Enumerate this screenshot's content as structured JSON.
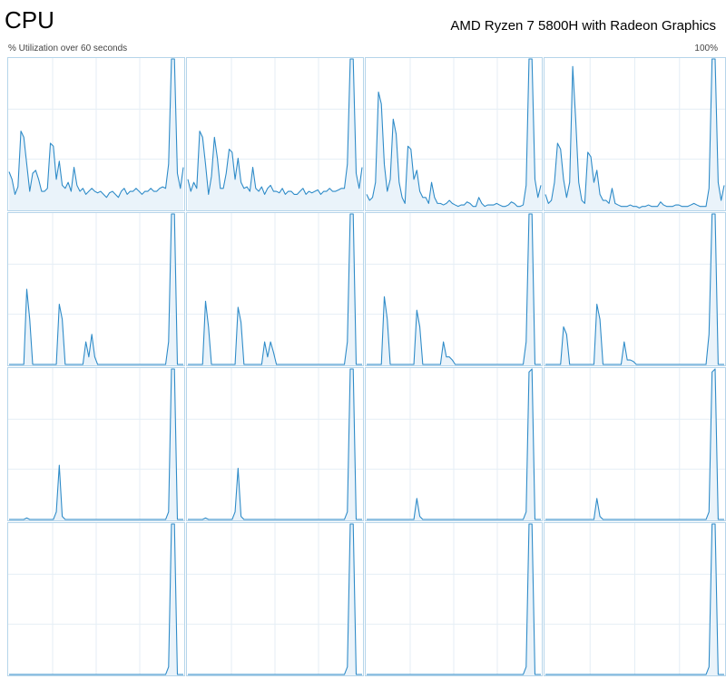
{
  "header": {
    "title": "CPU",
    "processor_name": "AMD Ryzen 7 5800H with Radeon Graphics",
    "utilization_label": "% Utilization over 60 seconds",
    "max_label": "100%"
  },
  "colors": {
    "line": "#2e8bc8",
    "fill": "#eaf3fa",
    "grid": "#e4eef5",
    "border": "#b6d5ea"
  },
  "chart_data": {
    "type": "line",
    "title": "",
    "xlabel": "",
    "ylabel": "% Utilization over 60 seconds",
    "xlim": [
      0,
      60
    ],
    "ylim": [
      0,
      100
    ],
    "grid": true,
    "series": [
      {
        "values": [
          25,
          20,
          10,
          15,
          52,
          48,
          30,
          12,
          24,
          26,
          20,
          12,
          12,
          14,
          44,
          42,
          20,
          32,
          16,
          14,
          18,
          12,
          28,
          16,
          12,
          14,
          10,
          12,
          14,
          12,
          11,
          12,
          10,
          8,
          11,
          12,
          10,
          8,
          12,
          14,
          10,
          12,
          12,
          14,
          12,
          10,
          12,
          12,
          14,
          12,
          12,
          14,
          15,
          14,
          30,
          100,
          100,
          24,
          14,
          28
        ]
      },
      {
        "values": [
          20,
          12,
          18,
          14,
          52,
          48,
          30,
          10,
          22,
          48,
          34,
          14,
          14,
          24,
          40,
          38,
          20,
          34,
          18,
          14,
          15,
          12,
          28,
          14,
          12,
          15,
          10,
          14,
          16,
          12,
          12,
          11,
          14,
          10,
          12,
          12,
          10,
          10,
          12,
          14,
          10,
          12,
          11,
          12,
          13,
          10,
          12,
          12,
          14,
          12,
          12,
          13,
          14,
          14,
          30,
          100,
          100,
          24,
          14,
          28
        ]
      },
      {
        "values": [
          10,
          6,
          8,
          18,
          78,
          70,
          30,
          12,
          20,
          60,
          50,
          18,
          8,
          4,
          42,
          40,
          20,
          26,
          12,
          8,
          8,
          4,
          18,
          8,
          4,
          4,
          3,
          4,
          6,
          4,
          3,
          2,
          3,
          3,
          5,
          4,
          2,
          2,
          8,
          4,
          2,
          3,
          3,
          3,
          4,
          3,
          2,
          2,
          3,
          5,
          4,
          2,
          2,
          3,
          16,
          100,
          100,
          20,
          8,
          16
        ]
      },
      {
        "values": [
          10,
          4,
          6,
          18,
          44,
          40,
          20,
          8,
          18,
          95,
          60,
          18,
          6,
          4,
          38,
          35,
          18,
          26,
          10,
          6,
          6,
          4,
          14,
          4,
          3,
          2,
          2,
          2,
          3,
          2,
          2,
          1,
          2,
          2,
          3,
          2,
          2,
          2,
          5,
          3,
          2,
          2,
          2,
          3,
          3,
          2,
          2,
          2,
          3,
          4,
          3,
          2,
          2,
          2,
          14,
          100,
          100,
          18,
          6,
          16
        ]
      },
      {
        "values": [
          0,
          0,
          0,
          0,
          0,
          0,
          50,
          30,
          0,
          0,
          0,
          0,
          0,
          0,
          0,
          0,
          0,
          40,
          30,
          0,
          0,
          0,
          0,
          0,
          0,
          0,
          15,
          5,
          20,
          5,
          0,
          0,
          0,
          0,
          0,
          0,
          0,
          0,
          0,
          0,
          0,
          0,
          0,
          0,
          0,
          0,
          0,
          0,
          0,
          0,
          0,
          0,
          0,
          0,
          15,
          100,
          100,
          0,
          0,
          0
        ]
      },
      {
        "values": [
          0,
          0,
          0,
          0,
          0,
          0,
          42,
          25,
          0,
          0,
          0,
          0,
          0,
          0,
          0,
          0,
          0,
          38,
          28,
          0,
          0,
          0,
          0,
          0,
          0,
          0,
          15,
          5,
          15,
          8,
          0,
          0,
          0,
          0,
          0,
          0,
          0,
          0,
          0,
          0,
          0,
          0,
          0,
          0,
          0,
          0,
          0,
          0,
          0,
          0,
          0,
          0,
          0,
          0,
          15,
          100,
          100,
          0,
          0,
          0
        ]
      },
      {
        "values": [
          0,
          0,
          0,
          0,
          0,
          0,
          45,
          30,
          0,
          0,
          0,
          0,
          0,
          0,
          0,
          0,
          0,
          36,
          25,
          0,
          0,
          0,
          0,
          0,
          0,
          0,
          15,
          5,
          5,
          3,
          0,
          0,
          0,
          0,
          0,
          0,
          0,
          0,
          0,
          0,
          0,
          0,
          0,
          0,
          0,
          0,
          0,
          0,
          0,
          0,
          0,
          0,
          0,
          0,
          15,
          100,
          100,
          0,
          0,
          0
        ]
      },
      {
        "values": [
          0,
          0,
          0,
          0,
          0,
          0,
          25,
          20,
          0,
          0,
          0,
          0,
          0,
          0,
          0,
          0,
          0,
          40,
          30,
          0,
          0,
          0,
          0,
          0,
          0,
          0,
          15,
          3,
          3,
          2,
          0,
          0,
          0,
          0,
          0,
          0,
          0,
          0,
          0,
          0,
          0,
          0,
          0,
          0,
          0,
          0,
          0,
          0,
          0,
          0,
          0,
          0,
          0,
          0,
          20,
          100,
          100,
          0,
          0,
          0
        ]
      },
      {
        "values": [
          0,
          0,
          0,
          0,
          0,
          0,
          1,
          0,
          0,
          0,
          0,
          0,
          0,
          0,
          0,
          0,
          5,
          36,
          2,
          0,
          0,
          0,
          0,
          0,
          0,
          0,
          0,
          0,
          0,
          0,
          0,
          0,
          0,
          0,
          0,
          0,
          0,
          0,
          0,
          0,
          0,
          0,
          0,
          0,
          0,
          0,
          0,
          0,
          0,
          0,
          0,
          0,
          0,
          0,
          5,
          100,
          100,
          0,
          0,
          0
        ]
      },
      {
        "values": [
          0,
          0,
          0,
          0,
          0,
          0,
          1,
          0,
          0,
          0,
          0,
          0,
          0,
          0,
          0,
          0,
          5,
          34,
          2,
          0,
          0,
          0,
          0,
          0,
          0,
          0,
          0,
          0,
          0,
          0,
          0,
          0,
          0,
          0,
          0,
          0,
          0,
          0,
          0,
          0,
          0,
          0,
          0,
          0,
          0,
          0,
          0,
          0,
          0,
          0,
          0,
          0,
          0,
          0,
          5,
          100,
          100,
          0,
          0,
          0
        ]
      },
      {
        "values": [
          0,
          0,
          0,
          0,
          0,
          0,
          0,
          0,
          0,
          0,
          0,
          0,
          0,
          0,
          0,
          0,
          0,
          14,
          2,
          0,
          0,
          0,
          0,
          0,
          0,
          0,
          0,
          0,
          0,
          0,
          0,
          0,
          0,
          0,
          0,
          0,
          0,
          0,
          0,
          0,
          0,
          0,
          0,
          0,
          0,
          0,
          0,
          0,
          0,
          0,
          0,
          0,
          0,
          0,
          5,
          98,
          100,
          0,
          0,
          0
        ]
      },
      {
        "values": [
          0,
          0,
          0,
          0,
          0,
          0,
          0,
          0,
          0,
          0,
          0,
          0,
          0,
          0,
          0,
          0,
          0,
          14,
          2,
          0,
          0,
          0,
          0,
          0,
          0,
          0,
          0,
          0,
          0,
          0,
          0,
          0,
          0,
          0,
          0,
          0,
          0,
          0,
          0,
          0,
          0,
          0,
          0,
          0,
          0,
          0,
          0,
          0,
          0,
          0,
          0,
          0,
          0,
          0,
          5,
          98,
          100,
          0,
          0,
          0
        ]
      },
      {
        "values": [
          0,
          0,
          0,
          0,
          0,
          0,
          0,
          0,
          0,
          0,
          0,
          0,
          0,
          0,
          0,
          0,
          0,
          0,
          0,
          0,
          0,
          0,
          0,
          0,
          0,
          0,
          0,
          0,
          0,
          0,
          0,
          0,
          0,
          0,
          0,
          0,
          0,
          0,
          0,
          0,
          0,
          0,
          0,
          0,
          0,
          0,
          0,
          0,
          0,
          0,
          0,
          0,
          0,
          0,
          5,
          100,
          100,
          0,
          0,
          0
        ]
      },
      {
        "values": [
          0,
          0,
          0,
          0,
          0,
          0,
          0,
          0,
          0,
          0,
          0,
          0,
          0,
          0,
          0,
          0,
          0,
          0,
          0,
          0,
          0,
          0,
          0,
          0,
          0,
          0,
          0,
          0,
          0,
          0,
          0,
          0,
          0,
          0,
          0,
          0,
          0,
          0,
          0,
          0,
          0,
          0,
          0,
          0,
          0,
          0,
          0,
          0,
          0,
          0,
          0,
          0,
          0,
          0,
          5,
          100,
          100,
          0,
          0,
          0
        ]
      },
      {
        "values": [
          0,
          0,
          0,
          0,
          0,
          0,
          0,
          0,
          0,
          0,
          0,
          0,
          0,
          0,
          0,
          0,
          0,
          0,
          0,
          0,
          0,
          0,
          0,
          0,
          0,
          0,
          0,
          0,
          0,
          0,
          0,
          0,
          0,
          0,
          0,
          0,
          0,
          0,
          0,
          0,
          0,
          0,
          0,
          0,
          0,
          0,
          0,
          0,
          0,
          0,
          0,
          0,
          0,
          0,
          5,
          100,
          100,
          0,
          0,
          0
        ]
      },
      {
        "values": [
          0,
          0,
          0,
          0,
          0,
          0,
          0,
          0,
          0,
          0,
          0,
          0,
          0,
          0,
          0,
          0,
          0,
          0,
          0,
          0,
          0,
          0,
          0,
          0,
          0,
          0,
          0,
          0,
          0,
          0,
          0,
          0,
          0,
          0,
          0,
          0,
          0,
          0,
          0,
          0,
          0,
          0,
          0,
          0,
          0,
          0,
          0,
          0,
          0,
          0,
          0,
          0,
          0,
          0,
          5,
          100,
          100,
          0,
          0,
          0
        ]
      }
    ]
  }
}
